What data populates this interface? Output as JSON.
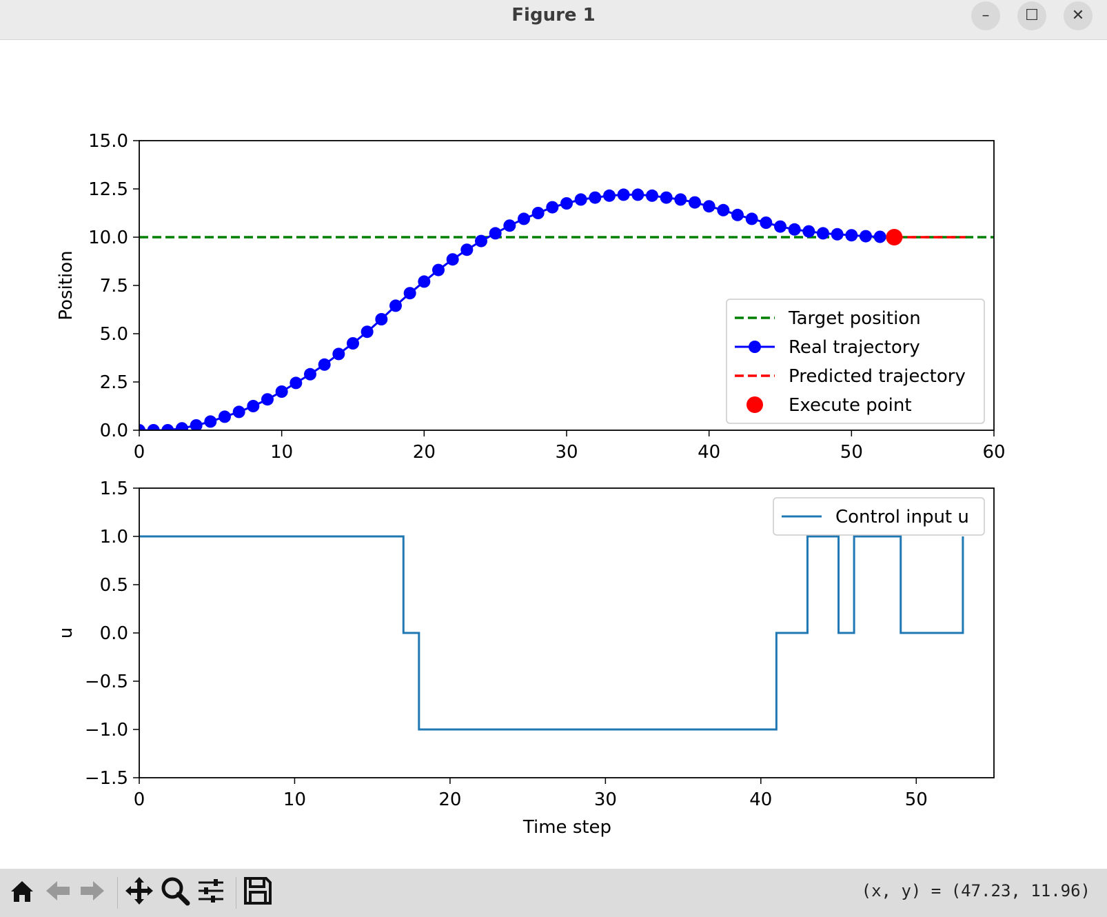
{
  "window": {
    "title": "Figure 1"
  },
  "titlebar_buttons": {
    "minimize": "–",
    "maximize": "☐",
    "close": "✕"
  },
  "toolbar": {
    "items": [
      "home-icon",
      "back-icon",
      "forward-icon",
      "pan-icon",
      "zoom-icon",
      "configure-icon",
      "save-icon"
    ],
    "coords_label": "(x, y) = (47.23, 11.96)"
  },
  "colors": {
    "target": "#008000",
    "real": "#0000ff",
    "predicted": "#ff0000",
    "execute": "#ff0000",
    "control": "#1f77b4"
  },
  "chart_data": [
    {
      "type": "line",
      "title": "",
      "xlabel": "",
      "ylabel": "Position",
      "xlim": [
        0,
        60
      ],
      "ylim": [
        0,
        15
      ],
      "xticks": [
        0,
        10,
        20,
        30,
        40,
        50,
        60
      ],
      "xtick_labels": [
        "0",
        "10",
        "20",
        "30",
        "40",
        "50",
        "60"
      ],
      "yticks": [
        0,
        2.5,
        5,
        7.5,
        10,
        12.5,
        15
      ],
      "ytick_labels": [
        "0.0",
        "2.5",
        "5.0",
        "7.5",
        "10.0",
        "12.5",
        "15.0"
      ],
      "grid": false,
      "legend": {
        "placement": "lower-right",
        "entries": [
          "Target position",
          "Real trajectory",
          "Predicted trajectory",
          "Execute point"
        ]
      },
      "series": [
        {
          "name": "Target position",
          "style": "dashed",
          "x": [
            0,
            60
          ],
          "y": [
            10,
            10
          ]
        },
        {
          "name": "Real trajectory",
          "style": "line-marker",
          "x": [
            0,
            1,
            2,
            3,
            4,
            5,
            6,
            7,
            8,
            9,
            10,
            11,
            12,
            13,
            14,
            15,
            16,
            17,
            18,
            19,
            20,
            21,
            22,
            23,
            24,
            25,
            26,
            27,
            28,
            29,
            30,
            31,
            32,
            33,
            34,
            35,
            36,
            37,
            38,
            39,
            40,
            41,
            42,
            43,
            44,
            45,
            46,
            47,
            48,
            49,
            50,
            51,
            52,
            53
          ],
          "y": [
            0,
            0,
            0,
            0.1,
            0.25,
            0.45,
            0.7,
            0.95,
            1.25,
            1.6,
            2.0,
            2.45,
            2.9,
            3.4,
            3.95,
            4.5,
            5.1,
            5.75,
            6.45,
            7.1,
            7.7,
            8.3,
            8.85,
            9.35,
            9.8,
            10.2,
            10.6,
            10.95,
            11.25,
            11.55,
            11.75,
            11.95,
            12.05,
            12.15,
            12.2,
            12.2,
            12.15,
            12.05,
            11.95,
            11.8,
            11.6,
            11.4,
            11.15,
            10.95,
            10.75,
            10.55,
            10.4,
            10.3,
            10.2,
            10.15,
            10.1,
            10.05,
            10.02,
            10.0
          ]
        },
        {
          "name": "Predicted trajectory",
          "style": "dashed",
          "x": [
            53,
            58
          ],
          "y": [
            10,
            10
          ]
        },
        {
          "name": "Execute point",
          "style": "marker",
          "x": [
            53
          ],
          "y": [
            10
          ]
        }
      ]
    },
    {
      "type": "line",
      "title": "",
      "xlabel": "Time step",
      "ylabel": "u",
      "xlim": [
        0,
        55
      ],
      "ylim": [
        -1.5,
        1.5
      ],
      "xticks": [
        0,
        10,
        20,
        30,
        40,
        50
      ],
      "xtick_labels": [
        "0",
        "10",
        "20",
        "30",
        "40",
        "50"
      ],
      "yticks": [
        -1.5,
        -1,
        -0.5,
        0,
        0.5,
        1,
        1.5
      ],
      "ytick_labels": [
        "−1.5",
        "−1.0",
        "−0.5",
        "0.0",
        "0.5",
        "1.0",
        "1.5"
      ],
      "grid": false,
      "legend": {
        "placement": "upper-right",
        "entries": [
          "Control input u"
        ]
      },
      "series": [
        {
          "name": "Control input u",
          "style": "step-post",
          "x": [
            0,
            17,
            18,
            41,
            43,
            45,
            46,
            49,
            53
          ],
          "y": [
            1,
            0,
            -1,
            0,
            1,
            0,
            1,
            0,
            1
          ]
        }
      ]
    }
  ]
}
